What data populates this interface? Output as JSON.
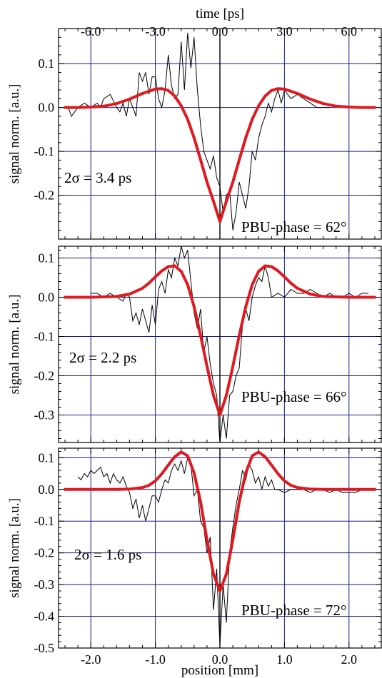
{
  "figure": {
    "top_axis_label": "time [ps]",
    "bottom_axis_label": "position [mm]",
    "top_ticks": [
      "-6.0",
      "-3.0",
      "0.0",
      "3.0",
      "6.0"
    ],
    "bottom_ticks": [
      "-2.0",
      "-1.0",
      "0.0",
      "1.0",
      "2.0"
    ]
  },
  "chart_data": [
    {
      "type": "line",
      "xlabel": "position [mm]",
      "ylabel": "signal norm. [a.u.]",
      "x_top_label": "time [ps]",
      "xlim": [
        -2.5,
        2.5
      ],
      "ylim": [
        -0.3,
        0.18
      ],
      "yticks": [
        "0.1",
        "0.0",
        "-0.1",
        "-0.2"
      ],
      "ytick_values": [
        0.1,
        0.0,
        -0.1,
        -0.2
      ],
      "annotations": [
        "2σ = 3.4 ps",
        "PBU-phase = 62°"
      ],
      "series": [
        {
          "role": "measured",
          "color": "#000000",
          "x": [
            -2.35,
            -2.3,
            -2.2,
            -2.1,
            -2.0,
            -1.95,
            -1.9,
            -1.85,
            -1.8,
            -1.7,
            -1.6,
            -1.55,
            -1.5,
            -1.45,
            -1.4,
            -1.35,
            -1.3,
            -1.25,
            -1.2,
            -1.15,
            -1.1,
            -1.05,
            -1.0,
            -0.95,
            -0.9,
            -0.85,
            -0.8,
            -0.75,
            -0.7,
            -0.65,
            -0.6,
            -0.55,
            -0.5,
            -0.45,
            -0.4,
            -0.35,
            -0.3,
            -0.25,
            -0.2,
            -0.15,
            -0.1,
            -0.05,
            0.0,
            0.05,
            0.1,
            0.15,
            0.2,
            0.25,
            0.3,
            0.35,
            0.4,
            0.45,
            0.5,
            0.55,
            0.6,
            0.65,
            0.7,
            0.75,
            0.8,
            0.85,
            0.9,
            0.95,
            1.0,
            1.1,
            1.2,
            1.3,
            1.4,
            1.5,
            1.6,
            1.7
          ],
          "y": [
            0.0,
            -0.02,
            0.0,
            0.01,
            0.0,
            0.005,
            0.01,
            0.0,
            0.02,
            0.03,
            0.0,
            -0.01,
            0.01,
            -0.02,
            0.02,
            0.0,
            -0.02,
            0.08,
            0.06,
            0.08,
            0.03,
            0.07,
            0.07,
            0.02,
            0.0,
            0.04,
            0.12,
            0.05,
            0.02,
            0.03,
            0.15,
            0.04,
            0.17,
            0.09,
            0.16,
            0.04,
            -0.04,
            -0.1,
            -0.12,
            -0.14,
            -0.11,
            -0.16,
            -0.18,
            -0.24,
            -0.2,
            -0.19,
            -0.28,
            -0.24,
            -0.17,
            -0.2,
            -0.23,
            -0.18,
            -0.1,
            -0.12,
            -0.07,
            -0.04,
            -0.02,
            0.01,
            -0.01,
            0.02,
            0.04,
            0.01,
            0.04,
            0.02,
            0.03,
            0.02,
            0.01,
            0.0,
            0.0,
            0.0
          ]
        },
        {
          "role": "fit",
          "color": "#e0191e",
          "x": [
            -2.4,
            -2.2,
            -2.0,
            -1.8,
            -1.6,
            -1.4,
            -1.2,
            -1.0,
            -0.9,
            -0.8,
            -0.7,
            -0.6,
            -0.5,
            -0.4,
            -0.3,
            -0.2,
            -0.1,
            0.0,
            0.1,
            0.2,
            0.3,
            0.4,
            0.5,
            0.6,
            0.7,
            0.8,
            0.9,
            1.0,
            1.2,
            1.4,
            1.6,
            1.8,
            2.0,
            2.2,
            2.4
          ],
          "y": [
            0.0,
            0.0,
            0.001,
            0.003,
            0.009,
            0.019,
            0.032,
            0.042,
            0.043,
            0.039,
            0.026,
            0.004,
            -0.027,
            -0.069,
            -0.119,
            -0.17,
            -0.214,
            -0.26,
            -0.214,
            -0.17,
            -0.119,
            -0.069,
            -0.027,
            0.004,
            0.026,
            0.039,
            0.043,
            0.042,
            0.032,
            0.019,
            0.009,
            0.003,
            0.001,
            0.0,
            0.0
          ]
        }
      ]
    },
    {
      "type": "line",
      "xlabel": "position [mm]",
      "ylabel": "signal norm. [a.u.]",
      "xlim": [
        -2.5,
        2.5
      ],
      "ylim": [
        -0.37,
        0.13
      ],
      "yticks": [
        "0.1",
        "0.0",
        "-0.1",
        "-0.2",
        "-0.3"
      ],
      "ytick_values": [
        0.1,
        0.0,
        -0.1,
        -0.2,
        -0.3
      ],
      "annotations": [
        "2σ = 2.2 ps",
        "PBU-phase = 66°"
      ],
      "series": [
        {
          "role": "measured",
          "color": "#000000",
          "x": [
            -2.0,
            -1.9,
            -1.8,
            -1.7,
            -1.6,
            -1.5,
            -1.45,
            -1.4,
            -1.35,
            -1.3,
            -1.25,
            -1.2,
            -1.15,
            -1.1,
            -1.05,
            -1.0,
            -0.95,
            -0.9,
            -0.85,
            -0.8,
            -0.75,
            -0.7,
            -0.65,
            -0.6,
            -0.55,
            -0.5,
            -0.45,
            -0.4,
            -0.35,
            -0.3,
            -0.25,
            -0.2,
            -0.15,
            -0.1,
            -0.05,
            0.0,
            0.05,
            0.1,
            0.15,
            0.2,
            0.25,
            0.3,
            0.35,
            0.4,
            0.45,
            0.5,
            0.55,
            0.6,
            0.65,
            0.7,
            0.75,
            0.8,
            0.9,
            1.0,
            1.1,
            1.2,
            1.3,
            1.4,
            1.5,
            1.6,
            1.7,
            1.8,
            1.9,
            2.0,
            2.1,
            2.2,
            2.3
          ],
          "y": [
            0.01,
            0.01,
            0.0,
            0.01,
            0.0,
            -0.01,
            0.01,
            0.0,
            -0.06,
            -0.04,
            -0.07,
            -0.03,
            -0.06,
            -0.09,
            -0.02,
            -0.07,
            0.02,
            0.04,
            0.01,
            0.07,
            0.05,
            0.1,
            0.08,
            0.13,
            0.1,
            0.12,
            0.04,
            -0.04,
            -0.08,
            -0.03,
            -0.14,
            -0.1,
            -0.17,
            -0.22,
            -0.25,
            -0.37,
            -0.3,
            -0.36,
            -0.25,
            -0.24,
            -0.2,
            -0.18,
            -0.07,
            -0.03,
            -0.06,
            0.0,
            0.03,
            0.05,
            0.04,
            0.08,
            0.05,
            0.0,
            0.01,
            0.0,
            0.02,
            0.01,
            0.01,
            0.02,
            0.01,
            0.0,
            0.01,
            0.0,
            0.0,
            0.01,
            0.0,
            0.01,
            0.01
          ]
        },
        {
          "role": "fit",
          "color": "#e0191e",
          "x": [
            -2.4,
            -2.0,
            -1.6,
            -1.4,
            -1.2,
            -1.1,
            -1.0,
            -0.9,
            -0.8,
            -0.7,
            -0.6,
            -0.5,
            -0.4,
            -0.3,
            -0.2,
            -0.1,
            0.0,
            0.1,
            0.2,
            0.3,
            0.4,
            0.5,
            0.6,
            0.7,
            0.8,
            0.9,
            1.0,
            1.1,
            1.2,
            1.4,
            1.6,
            2.0,
            2.4
          ],
          "y": [
            0.0,
            0.0,
            0.002,
            0.008,
            0.023,
            0.036,
            0.052,
            0.067,
            0.078,
            0.08,
            0.066,
            0.032,
            -0.024,
            -0.097,
            -0.176,
            -0.25,
            -0.3,
            -0.25,
            -0.176,
            -0.097,
            -0.024,
            0.032,
            0.066,
            0.08,
            0.078,
            0.067,
            0.052,
            0.036,
            0.023,
            0.008,
            0.002,
            0.0,
            0.0
          ]
        }
      ]
    },
    {
      "type": "line",
      "xlabel": "position [mm]",
      "ylabel": "signal norm. [a.u.]",
      "xlim": [
        -2.5,
        2.5
      ],
      "ylim": [
        -0.5,
        0.13
      ],
      "xticks": [
        "-2.0",
        "-1.0",
        "0.0",
        "1.0",
        "2.0"
      ],
      "yticks": [
        "0.1",
        "0.0",
        "-0.1",
        "-0.2",
        "-0.3",
        "-0.4",
        "-0.5"
      ],
      "ytick_values": [
        0.1,
        0.0,
        -0.1,
        -0.2,
        -0.3,
        -0.4,
        -0.5
      ],
      "annotations": [
        "2σ = 1.6 ps",
        "PBU-phase = 72°"
      ],
      "series": [
        {
          "role": "measured",
          "color": "#000000",
          "x": [
            -2.2,
            -2.15,
            -2.1,
            -2.05,
            -2.0,
            -1.95,
            -1.9,
            -1.85,
            -1.8,
            -1.75,
            -1.7,
            -1.65,
            -1.6,
            -1.55,
            -1.5,
            -1.45,
            -1.4,
            -1.35,
            -1.3,
            -1.25,
            -1.2,
            -1.15,
            -1.1,
            -1.05,
            -1.0,
            -0.95,
            -0.9,
            -0.85,
            -0.8,
            -0.75,
            -0.7,
            -0.65,
            -0.6,
            -0.55,
            -0.5,
            -0.45,
            -0.4,
            -0.35,
            -0.3,
            -0.25,
            -0.2,
            -0.15,
            -0.1,
            -0.05,
            0.0,
            0.05,
            0.1,
            0.15,
            0.2,
            0.25,
            0.3,
            0.35,
            0.4,
            0.45,
            0.5,
            0.55,
            0.6,
            0.65,
            0.7,
            0.75,
            0.8,
            0.85,
            0.9,
            1.0,
            1.1,
            1.2,
            1.3,
            1.4,
            1.5,
            1.6,
            1.7,
            1.8,
            1.9,
            2.0,
            2.1,
            2.2,
            2.3
          ],
          "y": [
            0.04,
            0.03,
            0.05,
            0.04,
            0.06,
            0.05,
            0.06,
            0.07,
            0.04,
            0.05,
            0.02,
            0.05,
            0.03,
            0.02,
            0.04,
            0.01,
            -0.01,
            -0.06,
            -0.03,
            -0.09,
            -0.05,
            -0.1,
            -0.06,
            -0.02,
            -0.02,
            -0.04,
            0.0,
            0.03,
            0.02,
            0.06,
            0.08,
            0.06,
            0.09,
            0.05,
            0.1,
            0.08,
            -0.02,
            0.0,
            -0.1,
            -0.12,
            -0.2,
            -0.15,
            -0.38,
            -0.25,
            -0.49,
            -0.3,
            -0.42,
            -0.2,
            -0.12,
            -0.05,
            0.0,
            0.06,
            0.03,
            0.08,
            0.06,
            0.02,
            0.04,
            0.0,
            0.04,
            0.01,
            0.03,
            0.0,
            0.0,
            -0.01,
            0.0,
            0.0,
            0.0,
            -0.01,
            0.0,
            0.0,
            -0.01,
            0.0,
            -0.01,
            -0.01,
            -0.01,
            0.0,
            0.0
          ]
        },
        {
          "role": "fit",
          "color": "#e0191e",
          "x": [
            -2.4,
            -2.0,
            -1.6,
            -1.4,
            -1.2,
            -1.1,
            -1.0,
            -0.9,
            -0.8,
            -0.7,
            -0.6,
            -0.5,
            -0.4,
            -0.3,
            -0.2,
            -0.1,
            0.0,
            0.1,
            0.2,
            0.3,
            0.4,
            0.5,
            0.6,
            0.7,
            0.8,
            0.9,
            1.0,
            1.1,
            1.2,
            1.4,
            1.6,
            2.0,
            2.4
          ],
          "y": [
            0.0,
            0.0,
            0.0,
            0.001,
            0.006,
            0.013,
            0.027,
            0.049,
            0.077,
            0.103,
            0.118,
            0.106,
            0.052,
            -0.039,
            -0.159,
            -0.267,
            -0.32,
            -0.267,
            -0.159,
            -0.039,
            0.052,
            0.106,
            0.118,
            0.103,
            0.077,
            0.049,
            0.027,
            0.013,
            0.006,
            0.001,
            0.0,
            0.0,
            0.0
          ]
        }
      ]
    }
  ]
}
